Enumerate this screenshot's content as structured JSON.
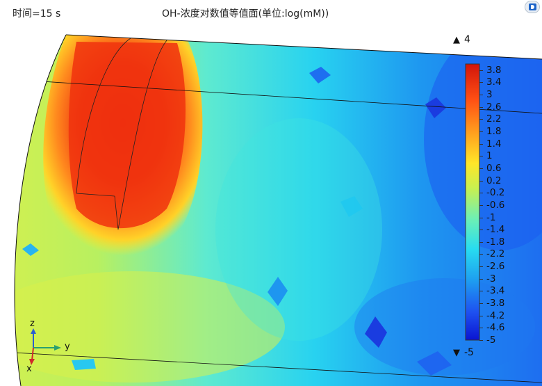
{
  "header": {
    "time_label": "时间=15 s",
    "title": "OH-浓度对数值等值面(单位:log(mM))"
  },
  "colorbar": {
    "max_label": "4",
    "min_label": "-5",
    "ticks": [
      "3.8",
      "3.4",
      "3",
      "2.6",
      "2.2",
      "1.8",
      "1.4",
      "1",
      "0.6",
      "0.2",
      "-0.2",
      "-0.6",
      "-1",
      "-1.4",
      "-1.8",
      "-2.2",
      "-2.6",
      "-3",
      "-3.4",
      "-3.8",
      "-4.2",
      "-4.6",
      "-5"
    ],
    "range_max": 4,
    "range_min": -5,
    "colors": [
      "#0a1ed8",
      "#1e64f0",
      "#1eb4f0",
      "#28e6e6",
      "#78f0a0",
      "#d2f050",
      "#ffe628",
      "#ffa01e",
      "#ff5014",
      "#d20a0a"
    ]
  },
  "axes_triad": {
    "z_label": "z",
    "y_label": "y",
    "x_label": "x",
    "colors": {
      "z": "#2a5fd0",
      "y": "#2aa070",
      "x": "#d02a2a"
    }
  },
  "toolbar": {
    "icon": "comsol-logo-icon"
  }
}
